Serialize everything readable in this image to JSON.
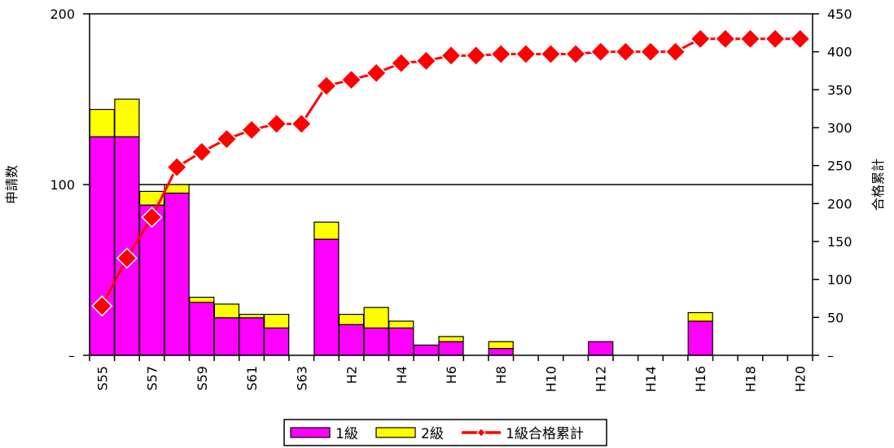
{
  "chart_data": {
    "type": "bar",
    "categories": [
      "S55",
      "S56",
      "S57",
      "S58",
      "S59",
      "S60",
      "S61",
      "S62",
      "S63",
      "H1",
      "H2",
      "H3",
      "H4",
      "H5",
      "H6",
      "H7",
      "H8",
      "H9",
      "H10",
      "H11",
      "H12",
      "H13",
      "H14",
      "H15",
      "H16",
      "H17",
      "H18",
      "H19",
      "H20"
    ],
    "x_tick_labels": [
      "S55",
      "S57",
      "S59",
      "S61",
      "S63",
      "H2",
      "H4",
      "H6",
      "H8",
      "H10",
      "H12",
      "H14",
      "H16",
      "H18",
      "H20"
    ],
    "series": [
      {
        "name": "1級",
        "kind": "bar",
        "axis": "left",
        "stack": "apps",
        "values": [
          128,
          128,
          88,
          95,
          31,
          22,
          22,
          16,
          0,
          68,
          18,
          16,
          16,
          6,
          8,
          0,
          4,
          0,
          0,
          0,
          8,
          0,
          0,
          0,
          20,
          0,
          0,
          0,
          0
        ]
      },
      {
        "name": "2級",
        "kind": "bar",
        "axis": "left",
        "stack": "apps",
        "values": [
          16,
          22,
          8,
          5,
          3,
          8,
          2,
          8,
          0,
          10,
          6,
          12,
          4,
          0,
          3,
          0,
          4,
          0,
          0,
          0,
          0,
          0,
          0,
          0,
          5,
          0,
          0,
          0,
          0
        ]
      },
      {
        "name": "1級合格累計",
        "kind": "line",
        "axis": "right",
        "values": [
          65,
          128,
          182,
          248,
          268,
          285,
          297,
          305,
          305,
          355,
          363,
          372,
          385,
          388,
          395,
          395,
          397,
          397,
          397,
          397,
          400,
          400,
          400,
          400,
          417,
          417,
          417,
          417,
          417
        ]
      }
    ],
    "ylabel": "申請数",
    "y2label": "合格累計",
    "ylim": [
      0,
      200
    ],
    "y2lim": [
      0,
      450
    ],
    "y_tick_labels": [
      "–",
      "100",
      "200"
    ],
    "y2_tick_labels": [
      "–",
      "50",
      "100",
      "150",
      "200",
      "250",
      "300",
      "350",
      "400",
      "450"
    ],
    "reference_line_y": 100,
    "legend_position": "bottom-center",
    "colors": {
      "level1": "#FF00FF",
      "level2": "#FFFF00",
      "cumulative": "#FF0000",
      "frame": "#000000"
    }
  }
}
